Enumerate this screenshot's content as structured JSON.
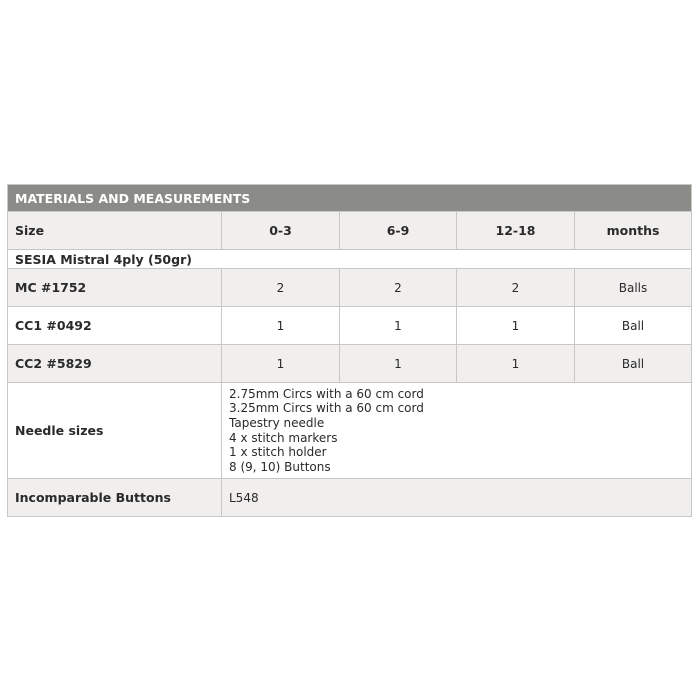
{
  "table": {
    "title": "MATERIALS AND MEASUREMENTS",
    "header": [
      "Size",
      "0-3",
      "6-9",
      "12-18",
      "months"
    ],
    "yarn_label": "SESIA Mistral 4ply (50gr)",
    "rows": [
      {
        "label": "MC #1752",
        "values": [
          "2",
          "2",
          "2"
        ],
        "unit": "Balls"
      },
      {
        "label": "CC1 #0492",
        "values": [
          "1",
          "1",
          "1"
        ],
        "unit": "Ball"
      },
      {
        "label": "CC2 #5829",
        "values": [
          "1",
          "1",
          "1"
        ],
        "unit": "Ball"
      }
    ],
    "needles": {
      "label": "Needle sizes",
      "items": [
        "2.75mm Circs with a 60 cm cord",
        "3.25mm Circs with a 60 cm cord",
        "Tapestry needle",
        "4 x stitch markers",
        "1 x stitch holder",
        "8 (9, 10) Buttons"
      ]
    },
    "buttons": {
      "label": "Incomparable Buttons",
      "value": "L548"
    }
  },
  "colors": {
    "header_bg": "#8b8b88",
    "shaded_row": "#f1efee",
    "border": "#c9c7c5"
  }
}
